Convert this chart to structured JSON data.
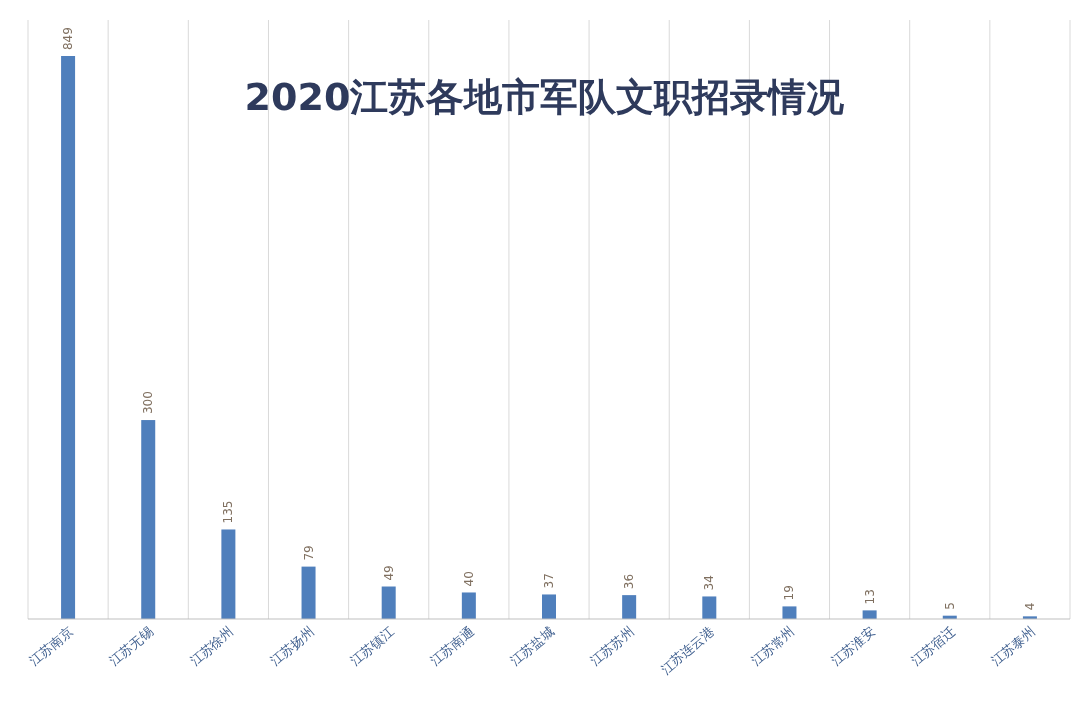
{
  "chart_data": {
    "type": "bar",
    "title": "2020江苏各地市军队文职招录情况",
    "categories": [
      "江苏南京",
      "江苏无锡",
      "江苏徐州",
      "江苏扬州",
      "江苏镇江",
      "江苏南通",
      "江苏盐城",
      "江苏苏州",
      "江苏连云港",
      "江苏常州",
      "江苏淮安",
      "江苏宿迁",
      "江苏泰州"
    ],
    "values": [
      849,
      300,
      135,
      79,
      49,
      40,
      37,
      36,
      34,
      19,
      13,
      5,
      4
    ],
    "color": "#4f7fbc",
    "data_labels": true,
    "grid": "x"
  }
}
